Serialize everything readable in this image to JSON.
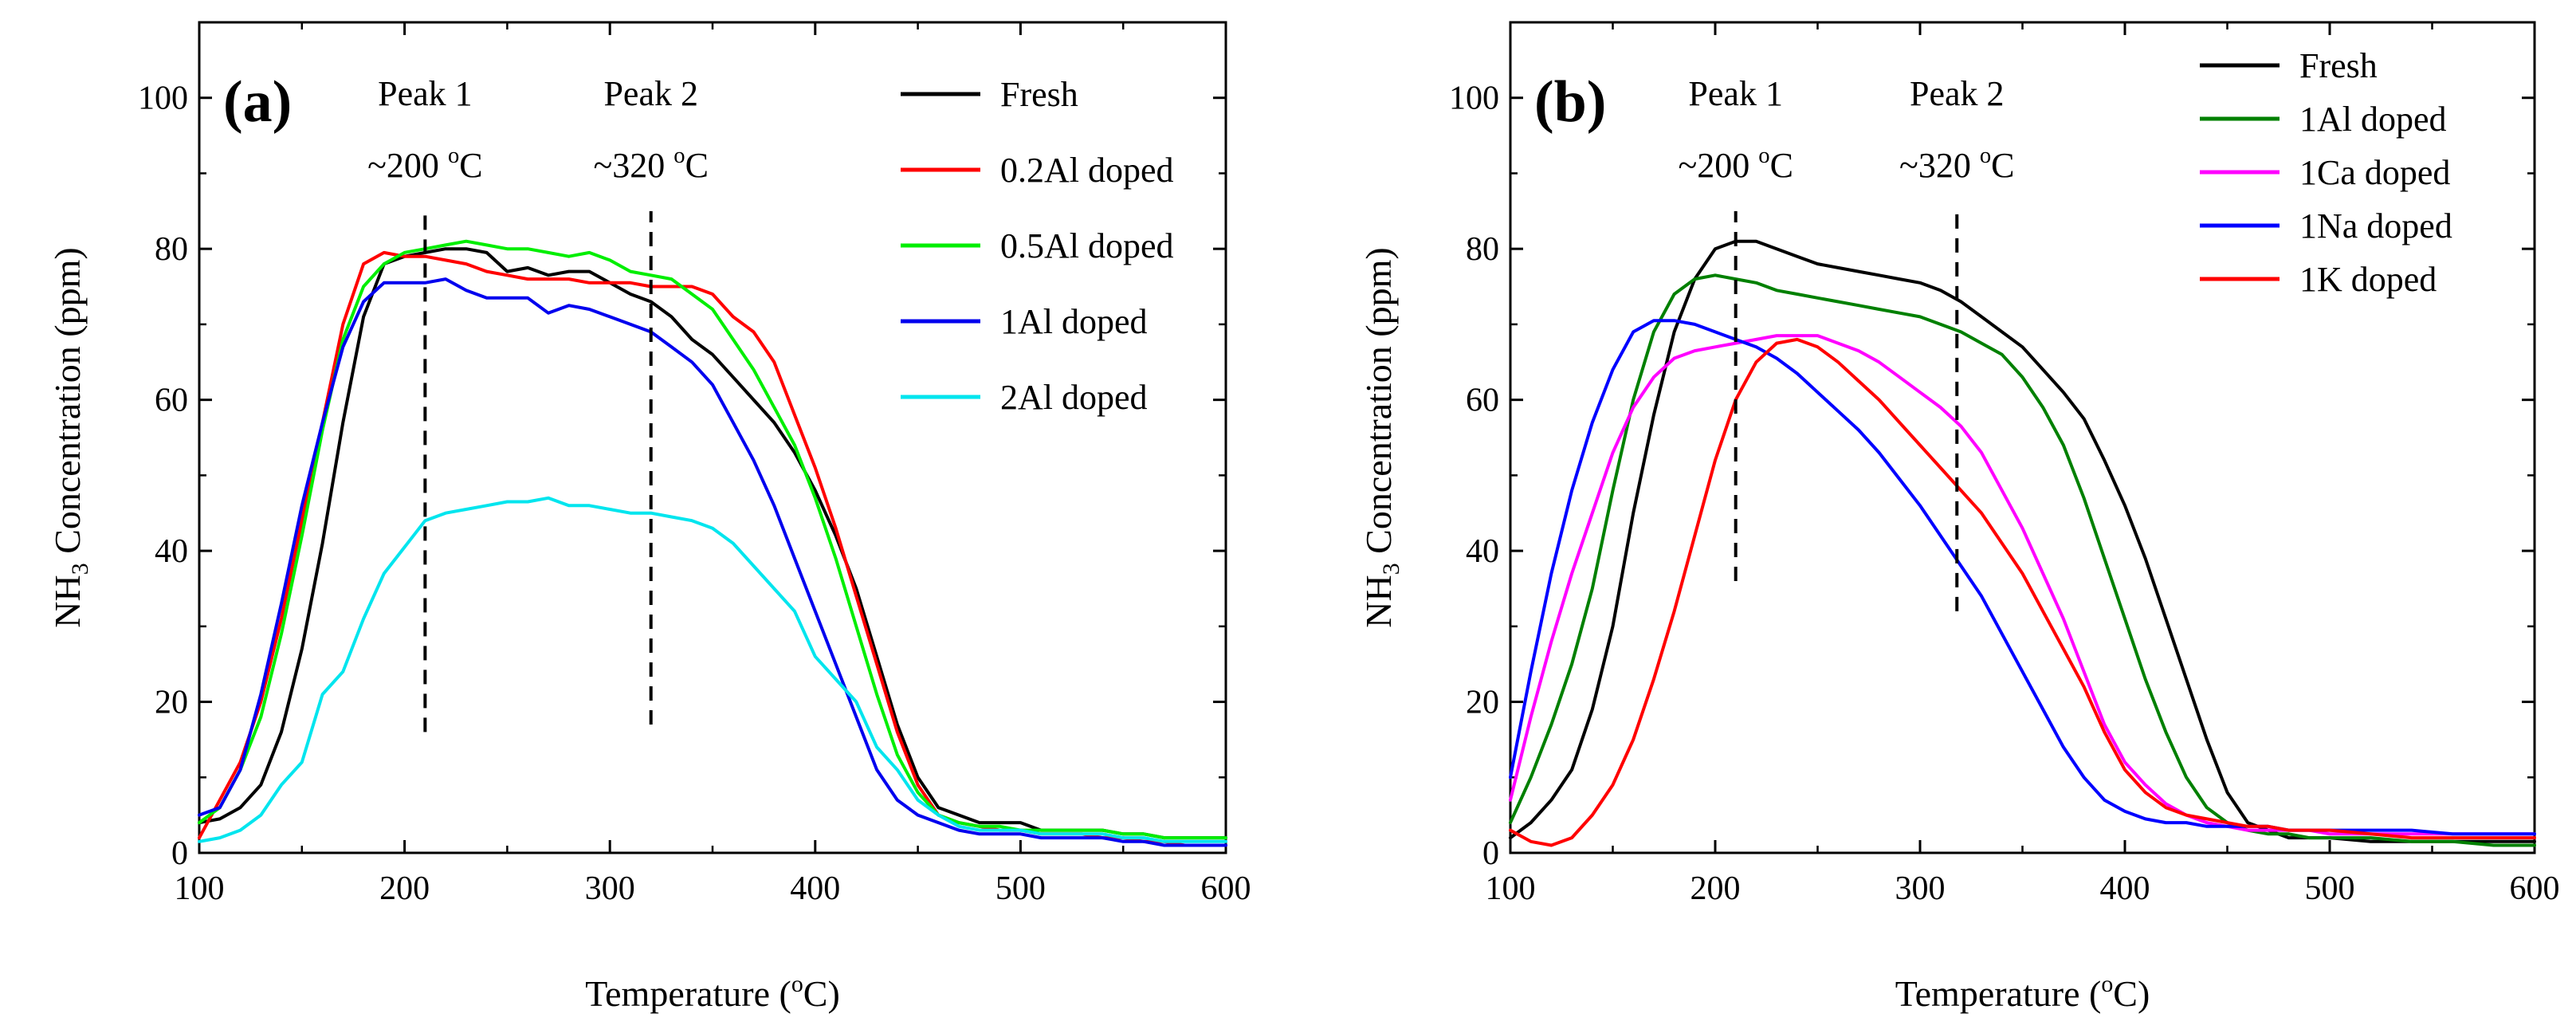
{
  "chart_data": [
    {
      "type": "line",
      "panel_label": "(a)",
      "xlabel": "Temperature (°C)",
      "xlabel_parts": {
        "pre": "Temperature (",
        "sup": "o",
        "post": "C)"
      },
      "ylabel_parts": {
        "pre": "NH",
        "sub": "3",
        "post": " Concentration (ppm)"
      },
      "xlim": [
        100,
        600
      ],
      "ylim": [
        0,
        110
      ],
      "xticks": [
        100,
        200,
        300,
        400,
        500,
        600
      ],
      "yticks": [
        0,
        20,
        40,
        60,
        80,
        100
      ],
      "grid": false,
      "legend_position": "top-right",
      "annotations": [
        {
          "title": "Peak 1",
          "temp_parts": {
            "pre": "~200 ",
            "sup": "o",
            "post": "C"
          },
          "x": 210,
          "y_from": 16,
          "y_to": 85
        },
        {
          "title": "Peak 2",
          "temp_parts": {
            "pre": "~320 ",
            "sup": "o",
            "post": "C"
          },
          "x": 320,
          "y_from": 17,
          "y_to": 85
        }
      ],
      "series": [
        {
          "name": "Fresh",
          "color": "#000000",
          "x": [
            100,
            110,
            120,
            130,
            140,
            150,
            160,
            170,
            180,
            190,
            200,
            210,
            220,
            230,
            240,
            250,
            260,
            270,
            280,
            290,
            300,
            310,
            320,
            330,
            340,
            350,
            360,
            370,
            380,
            390,
            400,
            410,
            420,
            430,
            440,
            450,
            460,
            470,
            480,
            490,
            500,
            510,
            520,
            530,
            540,
            550,
            560,
            570,
            580,
            590,
            600
          ],
          "y": [
            4,
            4.5,
            6,
            9,
            16,
            27,
            41,
            57,
            71,
            78,
            79,
            79.5,
            80,
            80,
            79.5,
            77,
            77.5,
            76.5,
            77,
            77,
            75.5,
            74,
            73,
            71,
            68,
            66,
            63,
            60,
            57,
            53,
            48,
            42,
            35,
            26,
            17,
            10,
            6,
            5,
            4,
            4,
            4,
            3,
            3,
            3,
            3,
            2.5,
            2.5,
            2,
            2,
            2,
            2
          ]
        },
        {
          "name": "0.2Al doped",
          "color": "#ff0000",
          "x": [
            100,
            110,
            120,
            130,
            140,
            150,
            160,
            170,
            180,
            190,
            200,
            210,
            220,
            230,
            240,
            250,
            260,
            270,
            280,
            290,
            300,
            310,
            320,
            330,
            340,
            350,
            360,
            370,
            380,
            390,
            400,
            410,
            420,
            430,
            440,
            450,
            460,
            470,
            480,
            490,
            500,
            510,
            520,
            530,
            540,
            550,
            560,
            570,
            580,
            590,
            600
          ],
          "y": [
            2,
            7,
            12,
            20,
            31,
            44,
            57,
            70,
            78,
            79.5,
            79,
            79,
            78.5,
            78,
            77,
            76.5,
            76,
            76,
            76,
            75.5,
            75.5,
            75.5,
            75,
            75,
            75,
            74,
            71,
            69,
            65,
            58,
            51,
            43,
            34,
            25,
            16,
            9,
            5,
            4,
            3.5,
            3,
            3,
            2.5,
            2.5,
            2.5,
            2,
            2,
            1.5,
            1.5,
            1,
            1,
            1
          ]
        },
        {
          "name": "0.5Al doped",
          "color": "#00ee00",
          "x": [
            100,
            110,
            120,
            130,
            140,
            150,
            160,
            170,
            180,
            190,
            200,
            210,
            220,
            230,
            240,
            250,
            260,
            270,
            280,
            290,
            300,
            310,
            320,
            330,
            340,
            350,
            360,
            370,
            380,
            390,
            400,
            410,
            420,
            430,
            440,
            450,
            460,
            470,
            480,
            490,
            500,
            510,
            520,
            530,
            540,
            550,
            560,
            570,
            580,
            590,
            600
          ],
          "y": [
            4,
            6,
            11,
            18,
            29,
            42,
            56,
            68,
            75,
            78,
            79.5,
            80,
            80.5,
            81,
            80.5,
            80,
            80,
            79.5,
            79,
            79.5,
            78.5,
            77,
            76.5,
            76,
            74,
            72,
            68,
            64,
            59,
            54,
            47,
            39,
            30,
            21,
            13,
            8,
            5,
            4,
            3.5,
            3.5,
            3,
            3,
            3,
            3,
            3,
            2.5,
            2.5,
            2,
            2,
            2,
            2
          ]
        },
        {
          "name": "1Al doped",
          "color": "#0000ee",
          "x": [
            100,
            110,
            120,
            130,
            140,
            150,
            160,
            170,
            180,
            190,
            200,
            210,
            220,
            230,
            240,
            250,
            260,
            270,
            280,
            290,
            300,
            310,
            320,
            330,
            340,
            350,
            360,
            370,
            380,
            390,
            400,
            410,
            420,
            430,
            440,
            450,
            460,
            470,
            480,
            490,
            500,
            510,
            520,
            530,
            540,
            550,
            560,
            570,
            580,
            590,
            600
          ],
          "y": [
            5,
            6,
            11,
            21,
            33,
            46,
            57,
            67,
            73,
            75.5,
            75.5,
            75.5,
            76,
            74.5,
            73.5,
            73.5,
            73.5,
            71.5,
            72.5,
            72,
            71,
            70,
            69,
            67,
            65,
            62,
            57,
            52,
            46,
            39,
            32,
            25,
            18,
            11,
            7,
            5,
            4,
            3,
            2.5,
            2.5,
            2.5,
            2,
            2,
            2,
            2,
            1.5,
            1.5,
            1,
            1,
            1,
            1
          ]
        },
        {
          "name": "2Al doped",
          "color": "#00e5ee",
          "x": [
            100,
            110,
            120,
            130,
            140,
            150,
            160,
            170,
            180,
            190,
            200,
            210,
            220,
            230,
            240,
            250,
            260,
            270,
            280,
            290,
            300,
            310,
            320,
            330,
            340,
            350,
            360,
            370,
            380,
            390,
            400,
            410,
            420,
            430,
            440,
            450,
            460,
            470,
            480,
            490,
            500,
            510,
            520,
            530,
            540,
            550,
            560,
            570,
            580,
            590,
            600
          ],
          "y": [
            1.5,
            2,
            3,
            5,
            9,
            12,
            21,
            24,
            31,
            37,
            40.5,
            44,
            45,
            45.5,
            46,
            46.5,
            46.5,
            47,
            46,
            46,
            45.5,
            45,
            45,
            44.5,
            44,
            43,
            41,
            38,
            35,
            32,
            26,
            23,
            20,
            14,
            11,
            7,
            5,
            3.5,
            3,
            3,
            3,
            2.5,
            2.5,
            2.5,
            2.5,
            2,
            2,
            1.5,
            1.5,
            1.5,
            1.5
          ]
        }
      ]
    },
    {
      "type": "line",
      "panel_label": "(b)",
      "xlabel": "Temperature (°C)",
      "xlabel_parts": {
        "pre": "Temperature (",
        "sup": "o",
        "post": "C)"
      },
      "ylabel_parts": {
        "pre": "NH",
        "sub": "3",
        "post": " Concentration (ppm)"
      },
      "xlim": [
        100,
        600
      ],
      "ylim": [
        0,
        110
      ],
      "xticks": [
        100,
        200,
        300,
        400,
        500,
        600
      ],
      "yticks": [
        0,
        20,
        40,
        60,
        80,
        100
      ],
      "grid": false,
      "legend_position": "top-right",
      "annotations": [
        {
          "title": "Peak 1",
          "temp_parts": {
            "pre": "~200 ",
            "sup": "o",
            "post": "C"
          },
          "x": 210,
          "y_from": 36,
          "y_to": 85
        },
        {
          "title": "Peak 2",
          "temp_parts": {
            "pre": "~320 ",
            "sup": "o",
            "post": "C"
          },
          "x": 318,
          "y_from": 32,
          "y_to": 85
        }
      ],
      "series": [
        {
          "name": "Fresh",
          "color": "#000000",
          "x": [
            100,
            110,
            120,
            130,
            140,
            150,
            160,
            170,
            180,
            190,
            200,
            210,
            220,
            230,
            240,
            250,
            260,
            270,
            280,
            290,
            300,
            310,
            320,
            330,
            340,
            350,
            360,
            370,
            380,
            390,
            400,
            410,
            420,
            430,
            440,
            450,
            460,
            470,
            480,
            490,
            500,
            520,
            540,
            560,
            580,
            600
          ],
          "y": [
            2,
            4,
            7,
            11,
            19,
            30,
            45,
            58,
            69,
            76,
            80,
            81,
            81,
            80,
            79,
            78,
            77.5,
            77,
            76.5,
            76,
            75.5,
            74.5,
            73,
            71,
            69,
            67,
            64,
            61,
            57.5,
            52,
            46,
            39,
            31,
            23,
            15,
            8,
            4,
            3,
            2,
            2,
            2,
            1.5,
            1.5,
            1.5,
            1.5,
            1.5
          ]
        },
        {
          "name": "1Al doped",
          "color": "#008000",
          "x": [
            100,
            110,
            120,
            130,
            140,
            150,
            160,
            170,
            180,
            190,
            200,
            210,
            220,
            230,
            240,
            250,
            260,
            270,
            280,
            290,
            300,
            310,
            320,
            330,
            340,
            350,
            360,
            370,
            380,
            390,
            400,
            410,
            420,
            430,
            440,
            450,
            460,
            470,
            480,
            490,
            500,
            520,
            540,
            560,
            580,
            600
          ],
          "y": [
            4,
            10,
            17,
            25,
            35,
            48,
            60,
            69,
            74,
            76,
            76.5,
            76,
            75.5,
            74.5,
            74,
            73.5,
            73,
            72.5,
            72,
            71.5,
            71,
            70,
            69,
            67.5,
            66,
            63,
            59,
            54,
            47,
            39,
            31,
            23,
            16,
            10,
            6,
            4,
            3,
            2.5,
            2.5,
            2,
            2,
            2,
            1.5,
            1.5,
            1,
            1
          ]
        },
        {
          "name": "1Ca doped",
          "color": "#ff00ff",
          "x": [
            100,
            110,
            120,
            130,
            140,
            150,
            160,
            170,
            180,
            190,
            200,
            210,
            220,
            230,
            240,
            250,
            260,
            270,
            280,
            290,
            300,
            310,
            320,
            330,
            340,
            350,
            360,
            370,
            380,
            390,
            400,
            410,
            420,
            430,
            440,
            450,
            460,
            470,
            480,
            490,
            500,
            520,
            540,
            560,
            580,
            600
          ],
          "y": [
            7,
            18,
            28,
            37,
            45,
            53,
            59,
            63,
            65.5,
            66.5,
            67,
            67.5,
            68,
            68.5,
            68.5,
            68.5,
            67.5,
            66.5,
            65,
            63,
            61,
            59,
            56.5,
            53,
            48,
            43,
            37,
            31,
            24,
            17,
            12,
            9,
            6.5,
            5,
            4,
            3.5,
            3,
            3,
            3,
            3,
            2.5,
            2.5,
            2.5,
            2.5,
            2.5,
            2.5
          ]
        },
        {
          "name": "1Na doped",
          "color": "#0000ff",
          "x": [
            100,
            110,
            120,
            130,
            140,
            150,
            160,
            170,
            180,
            190,
            200,
            210,
            220,
            230,
            240,
            250,
            260,
            270,
            280,
            290,
            300,
            310,
            320,
            330,
            340,
            350,
            360,
            370,
            380,
            390,
            400,
            410,
            420,
            430,
            440,
            450,
            460,
            470,
            480,
            490,
            500,
            520,
            540,
            560,
            580,
            600
          ],
          "y": [
            10,
            24,
            37,
            48,
            57,
            64,
            69,
            70.5,
            70.5,
            70,
            69,
            68,
            67,
            65.5,
            63.5,
            61,
            58.5,
            56,
            53,
            49.5,
            46,
            42,
            38,
            34,
            29,
            24,
            19,
            14,
            10,
            7,
            5.5,
            4.5,
            4,
            4,
            3.5,
            3.5,
            3.5,
            3.5,
            3,
            3,
            3,
            3,
            3,
            2.5,
            2.5,
            2.5
          ]
        },
        {
          "name": "1K doped",
          "color": "#ff0000",
          "x": [
            100,
            110,
            120,
            130,
            140,
            150,
            160,
            170,
            180,
            190,
            200,
            210,
            220,
            230,
            240,
            250,
            260,
            270,
            280,
            290,
            300,
            310,
            320,
            330,
            340,
            350,
            360,
            370,
            380,
            390,
            400,
            410,
            420,
            430,
            440,
            450,
            460,
            470,
            480,
            490,
            500,
            520,
            540,
            560,
            580,
            600
          ],
          "y": [
            3,
            1.5,
            1,
            2,
            5,
            9,
            15,
            23,
            32,
            42,
            52,
            60,
            65,
            67.5,
            68,
            67,
            65,
            62.5,
            60,
            57,
            54,
            51,
            48,
            45,
            41,
            37,
            32,
            27,
            22,
            16,
            11,
            8,
            6,
            5,
            4.5,
            4,
            3.5,
            3.5,
            3,
            3,
            3,
            2.5,
            2,
            2,
            2,
            2
          ]
        }
      ]
    }
  ]
}
